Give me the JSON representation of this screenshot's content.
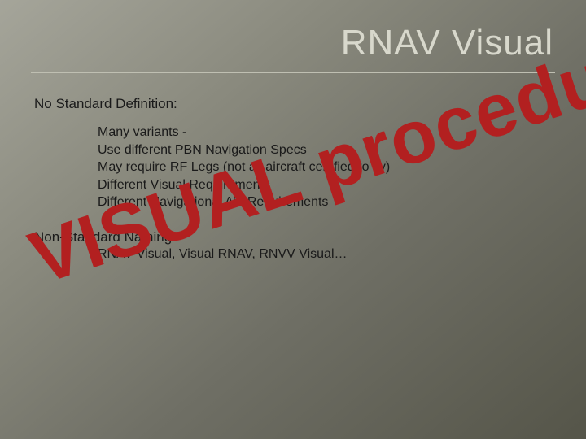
{
  "slide": {
    "title": "RNAV Visual",
    "title_color": "#d8d8cc",
    "title_fontsize": 44,
    "underline_color": "#bfbfb2",
    "background_gradient": {
      "stops": [
        "#a5a59a",
        "#8a8a7e",
        "#6f6f65",
        "#555549"
      ],
      "angle_deg": 140
    },
    "section1": {
      "heading": "No Standard Definition:",
      "bullets": [
        "Many variants -",
        "Use different PBN Navigation Specs",
        "May require RF Legs (not all aircraft certified to fly)",
        "Different Visual Requirements",
        "Different Navigational Aid Requirements"
      ]
    },
    "section2": {
      "heading": "Non-Standard Naming:",
      "subline": "RNAV Visual, Visual RNAV, RNVV Visual…"
    },
    "body_text_color": "#1a1a1a",
    "body_fontsize": 16,
    "heading_fontsize": 17,
    "stamp": {
      "text": "VISUAL procedure",
      "color": "#b22020",
      "fontsize": 92,
      "rotation_deg": -18,
      "font_weight": 900
    }
  }
}
